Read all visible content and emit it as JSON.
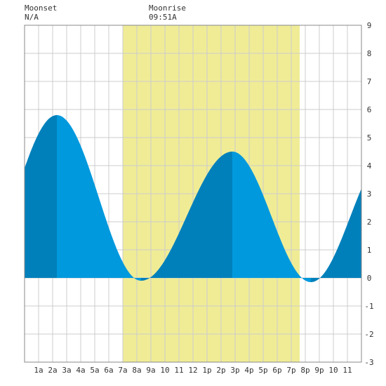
{
  "chart_data": {
    "type": "area",
    "moonset": {
      "label": "Moonset",
      "time": "N/A"
    },
    "moonrise": {
      "label": "Moonrise",
      "time": "09:51A",
      "hour": 9.85
    },
    "daylight": {
      "start_hour": 7.0,
      "end_hour": 19.6,
      "color": "#f0ec96"
    },
    "x_tick_labels": [
      "1a",
      "2a",
      "3a",
      "4a",
      "5a",
      "6a",
      "7a",
      "8a",
      "9a",
      "10",
      "11",
      "12",
      "1p",
      "2p",
      "3p",
      "4p",
      "5p",
      "6p",
      "7p",
      "8p",
      "9p",
      "10",
      "11"
    ],
    "xlim": [
      0,
      24
    ],
    "ylim": [
      -3,
      9
    ],
    "y_ticks": [
      9,
      8,
      7,
      6,
      5,
      4,
      3,
      2,
      1,
      0,
      -1,
      -2,
      -3
    ],
    "grid": true,
    "extrema": [
      {
        "hour": 2.3,
        "value": 5.8
      },
      {
        "hour": 8.3,
        "value": -0.1
      },
      {
        "hour": 14.8,
        "value": 4.5
      },
      {
        "hour": 20.4,
        "value": -0.15
      }
    ],
    "start": {
      "hour": 0,
      "value": 4.5
    },
    "end": {
      "hour": 24,
      "value": 3.25
    },
    "colors": {
      "tide_light": "#0099dd",
      "tide_dark": "#0080bb",
      "grid": "#cccccc",
      "frame": "#888888"
    }
  }
}
